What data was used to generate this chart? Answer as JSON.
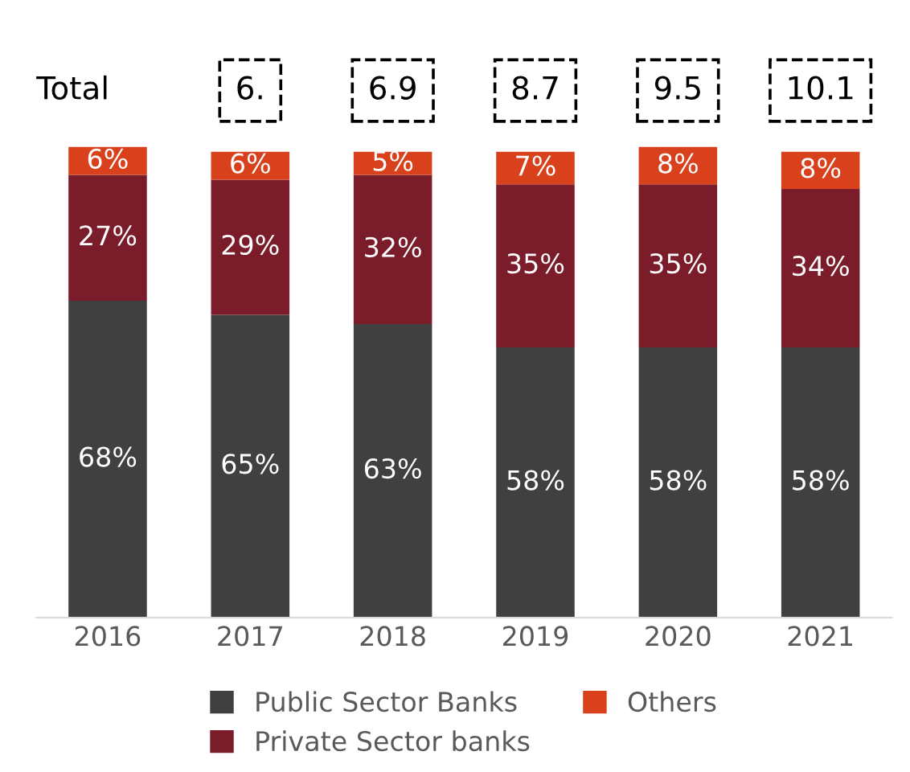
{
  "chart_data": {
    "type": "bar",
    "stacked": true,
    "categories": [
      "2016",
      "2017",
      "2018",
      "2019",
      "2020",
      "2021"
    ],
    "series": [
      {
        "name": "Public Sector Banks",
        "color": "#404040",
        "values": [
          68,
          65,
          63,
          58,
          58,
          58
        ],
        "value_labels": [
          "68%",
          "65%",
          "63%",
          "58%",
          "58%",
          "58%"
        ]
      },
      {
        "name": "Private Sector banks",
        "color": "#7b1c2a",
        "values": [
          27,
          29,
          32,
          35,
          35,
          34
        ],
        "value_labels": [
          "27%",
          "29%",
          "32%",
          "35%",
          "35%",
          "34%"
        ]
      },
      {
        "name": "Others",
        "color": "#d9401c",
        "values": [
          6,
          6,
          5,
          7,
          8,
          8
        ],
        "value_labels": [
          "6%",
          "6%",
          "5%",
          "7%",
          "8%",
          "8%"
        ]
      }
    ],
    "annotations": [
      "Total",
      "6.",
      "6.9",
      "8.7",
      "9.5",
      "10.1"
    ],
    "legend": "bottom",
    "grid": false
  }
}
